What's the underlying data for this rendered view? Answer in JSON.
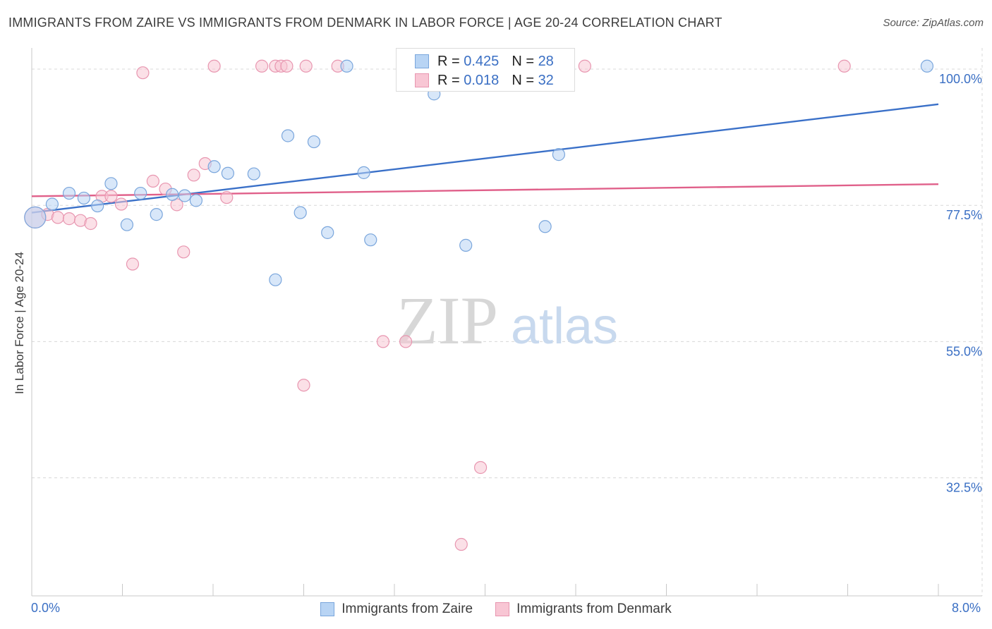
{
  "header": {
    "title": "IMMIGRANTS FROM ZAIRE VS IMMIGRANTS FROM DENMARK IN LABOR FORCE | AGE 20-24 CORRELATION CHART",
    "source": "Source: ZipAtlas.com"
  },
  "watermark": {
    "zip": "ZIP",
    "atlas": "atlas"
  },
  "legend": {
    "zaire": {
      "r_label": "R =",
      "r_value": "0.425",
      "n_label": "N =",
      "n_value": "28"
    },
    "denmark": {
      "r_label": "R =",
      "r_value": "0.018",
      "n_label": "N =",
      "n_value": "32"
    }
  },
  "colors": {
    "zaire_fill": "#b8d4f4",
    "zaire_stroke": "#7aa6dc",
    "zaire_line": "#3a70c8",
    "denmark_fill": "#f8c6d4",
    "denmark_stroke": "#e896b0",
    "denmark_line": "#e0608a",
    "tick_text": "#3a6fc4",
    "grid": "#d8d8d8"
  },
  "chart_data": {
    "type": "scatter",
    "title": "IMMIGRANTS FROM ZAIRE VS IMMIGRANTS FROM DENMARK IN LABOR FORCE | AGE 20-24 CORRELATION CHART",
    "xlabel": "",
    "ylabel": "In Labor Force | Age 20-24",
    "xlim": [
      0.0,
      8.0
    ],
    "ylim": [
      13.0,
      103.5
    ],
    "x_tick_labels": [
      "0.0%",
      "8.0%"
    ],
    "y_ticks": [
      32.5,
      55.0,
      77.5,
      100.0
    ],
    "y_tick_labels": [
      "32.5%",
      "55.0%",
      "77.5%",
      "100.0%"
    ],
    "grid": true,
    "series": [
      {
        "name": "Immigrants from Zaire",
        "r": 0.425,
        "n": 28,
        "trend": {
          "x": [
            0.0,
            8.0
          ],
          "y": [
            76.3,
            94.2
          ]
        },
        "points": [
          {
            "x": 0.03,
            "y": 75.5,
            "big": true
          },
          {
            "x": 0.18,
            "y": 77.7
          },
          {
            "x": 0.33,
            "y": 79.5
          },
          {
            "x": 0.46,
            "y": 78.7
          },
          {
            "x": 0.58,
            "y": 77.4
          },
          {
            "x": 0.7,
            "y": 81.1
          },
          {
            "x": 0.84,
            "y": 74.3
          },
          {
            "x": 0.96,
            "y": 79.5
          },
          {
            "x": 1.1,
            "y": 76.0
          },
          {
            "x": 1.24,
            "y": 79.3
          },
          {
            "x": 1.35,
            "y": 79.1
          },
          {
            "x": 1.45,
            "y": 78.3
          },
          {
            "x": 1.61,
            "y": 83.9
          },
          {
            "x": 1.73,
            "y": 82.8
          },
          {
            "x": 1.96,
            "y": 82.7
          },
          {
            "x": 2.15,
            "y": 65.2
          },
          {
            "x": 2.26,
            "y": 89.0
          },
          {
            "x": 2.37,
            "y": 76.3
          },
          {
            "x": 2.49,
            "y": 88.0
          },
          {
            "x": 2.61,
            "y": 73.0
          },
          {
            "x": 2.78,
            "y": 100.5
          },
          {
            "x": 2.93,
            "y": 82.9
          },
          {
            "x": 2.99,
            "y": 71.8
          },
          {
            "x": 3.55,
            "y": 95.9
          },
          {
            "x": 3.83,
            "y": 70.9
          },
          {
            "x": 4.53,
            "y": 74.0
          },
          {
            "x": 4.65,
            "y": 85.9
          },
          {
            "x": 7.9,
            "y": 100.5
          }
        ]
      },
      {
        "name": "Immigrants from Denmark",
        "r": 0.018,
        "n": 32,
        "trend": {
          "x": [
            0.0,
            8.0
          ],
          "y": [
            79.0,
            81.0
          ]
        },
        "points": [
          {
            "x": 0.03,
            "y": 75.5,
            "big": true
          },
          {
            "x": 0.14,
            "y": 76.0
          },
          {
            "x": 0.23,
            "y": 75.5
          },
          {
            "x": 0.33,
            "y": 75.3
          },
          {
            "x": 0.43,
            "y": 75.0
          },
          {
            "x": 0.52,
            "y": 74.5
          },
          {
            "x": 0.62,
            "y": 79.0
          },
          {
            "x": 0.7,
            "y": 79.0
          },
          {
            "x": 0.79,
            "y": 77.7
          },
          {
            "x": 0.89,
            "y": 67.8
          },
          {
            "x": 0.98,
            "y": 99.4
          },
          {
            "x": 1.07,
            "y": 81.5
          },
          {
            "x": 1.18,
            "y": 80.2
          },
          {
            "x": 1.28,
            "y": 77.6
          },
          {
            "x": 1.34,
            "y": 69.8
          },
          {
            "x": 1.43,
            "y": 82.5
          },
          {
            "x": 1.53,
            "y": 84.4
          },
          {
            "x": 1.61,
            "y": 100.5
          },
          {
            "x": 1.72,
            "y": 78.8
          },
          {
            "x": 2.03,
            "y": 100.5
          },
          {
            "x": 2.15,
            "y": 100.5
          },
          {
            "x": 2.2,
            "y": 100.5
          },
          {
            "x": 2.25,
            "y": 100.5
          },
          {
            "x": 2.4,
            "y": 47.8
          },
          {
            "x": 2.42,
            "y": 100.5
          },
          {
            "x": 2.7,
            "y": 100.5
          },
          {
            "x": 3.1,
            "y": 55.0
          },
          {
            "x": 3.3,
            "y": 55.0
          },
          {
            "x": 3.79,
            "y": 21.5
          },
          {
            "x": 3.96,
            "y": 34.2
          },
          {
            "x": 4.88,
            "y": 100.5
          },
          {
            "x": 7.17,
            "y": 100.5
          }
        ]
      }
    ]
  }
}
